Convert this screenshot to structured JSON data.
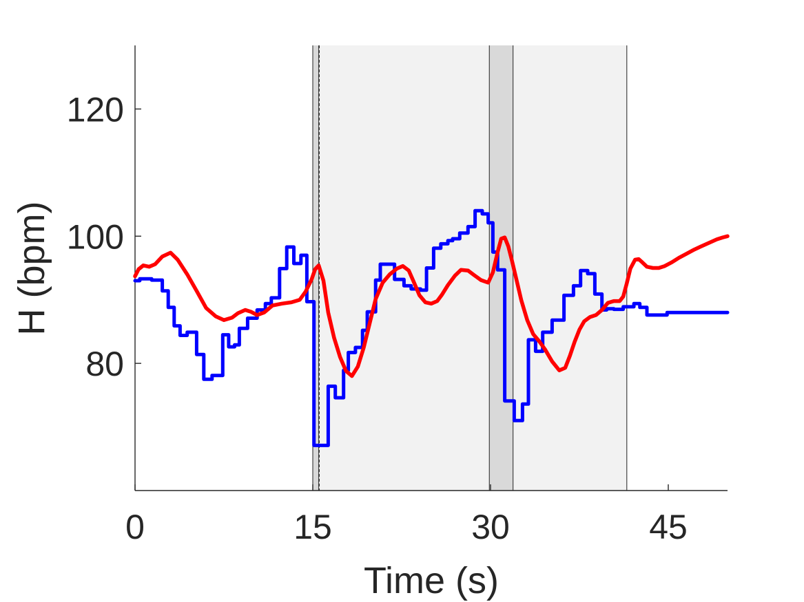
{
  "chart_data": {
    "type": "line",
    "xlabel": "Time (s)",
    "ylabel": "H (bpm)",
    "xlim": [
      0,
      50
    ],
    "ylim": [
      60,
      130
    ],
    "xticks": [
      0,
      15,
      30,
      45
    ],
    "yticks": [
      80,
      100,
      120
    ],
    "grid": false,
    "legend": "none",
    "colors": {
      "axis": "#262626",
      "shade_light": "#f2f2f2",
      "shade_dark": "#d9d9d9",
      "shade_line": "#333333"
    },
    "shaded_regions": [
      {
        "x0": 15.0,
        "x1": 15.5,
        "shade": "dark"
      },
      {
        "x0": 15.5,
        "x1": 29.9,
        "shade": "light"
      },
      {
        "x0": 29.9,
        "x1": 31.9,
        "shade": "dark"
      },
      {
        "x0": 31.9,
        "x1": 41.5,
        "shade": "light"
      }
    ],
    "dashed_lines": [
      15.55
    ],
    "series": [
      {
        "color": "#0000ff",
        "step": true,
        "x": [
          0,
          0.4,
          1.4,
          2.3,
          2.8,
          3.3,
          3.8,
          4.4,
          5.2,
          5.8,
          6.5,
          7.4,
          7.9,
          8.4,
          8.8,
          9.5,
          10.3,
          11.0,
          11.5,
          12.2,
          12.8,
          13.4,
          14.0,
          14.5,
          15.1,
          15.4,
          15.6,
          16.3,
          16.9,
          17.6,
          18.0,
          18.6,
          19.2,
          19.6,
          20.3,
          20.7,
          21.3,
          21.9,
          22.7,
          23.3,
          24.1,
          24.6,
          25.2,
          25.8,
          26.4,
          26.8,
          27.4,
          28.1,
          28.7,
          29.3,
          29.8,
          30.2,
          30.6,
          31.2,
          32.0,
          32.7,
          33.2,
          33.8,
          34.4,
          35.2,
          36.2,
          37.0,
          37.6,
          38.2,
          38.8,
          39.4,
          39.8,
          40.4,
          41.2,
          42.1,
          42.6,
          43.2,
          43.7,
          44.9,
          45.5,
          45.9,
          46.7,
          47.6,
          48.1,
          48.7,
          49.3,
          50.0
        ],
        "y": [
          93,
          93.3,
          93.1,
          91.4,
          88.8,
          85.9,
          84.4,
          84.9,
          81.4,
          77.5,
          78.1,
          84.5,
          82.6,
          82.9,
          85.5,
          87.1,
          88.4,
          89.4,
          90.3,
          94.9,
          98.3,
          95.7,
          97.0,
          89.7,
          67.1,
          67.1,
          67.1,
          76.4,
          74.6,
          78.9,
          81.7,
          82.5,
          85.2,
          88.1,
          93.1,
          95.6,
          95.6,
          93.2,
          92.2,
          91.7,
          91.5,
          95.0,
          98.1,
          98.8,
          99.3,
          99.6,
          100.5,
          101.5,
          104.0,
          103.5,
          102.1,
          97.5,
          94.7,
          74.1,
          71.0,
          73.6,
          83.7,
          81.9,
          84.9,
          86.8,
          90.7,
          92.2,
          94.6,
          94.1,
          90.9,
          88.4,
          88.6,
          88.5,
          88.9,
          89.4,
          88.8,
          87.6,
          87.6,
          88.0,
          88.0,
          88.0,
          88.0,
          88.0,
          88.0,
          88.0,
          88.0,
          88.0
        ]
      },
      {
        "color": "#ff0000",
        "step": false,
        "x": [
          0,
          0.3,
          0.7,
          1.2,
          1.7,
          2.3,
          3.0,
          3.6,
          4.4,
          5.2,
          6.0,
          6.8,
          7.5,
          8.2,
          8.7,
          9.3,
          9.8,
          10.3,
          10.9,
          11.6,
          12.4,
          13.2,
          13.9,
          14.4,
          14.9,
          15.2,
          15.5,
          15.9,
          16.3,
          16.8,
          17.3,
          17.8,
          18.3,
          18.8,
          19.3,
          19.8,
          20.3,
          20.9,
          21.5,
          22.1,
          22.6,
          23.1,
          23.5,
          24.0,
          24.5,
          25.0,
          25.5,
          25.9,
          26.4,
          27.0,
          27.5,
          28.1,
          28.6,
          29.2,
          29.8,
          30.2,
          30.6,
          30.9,
          31.2,
          31.5,
          31.8,
          32.2,
          32.6,
          33.1,
          33.6,
          34.1,
          34.6,
          35.2,
          35.8,
          36.3,
          36.7,
          37.1,
          37.5,
          37.9,
          38.4,
          38.9,
          39.4,
          39.9,
          40.4,
          40.9,
          41.2,
          41.5,
          41.8,
          42.2,
          42.5,
          42.8,
          43.2,
          43.7,
          44.2,
          44.7,
          45.3,
          45.9,
          46.5,
          47.2,
          47.9,
          48.5,
          49.1,
          49.6,
          50.0
        ],
        "y": [
          93.7,
          94.8,
          95.4,
          95.2,
          95.6,
          96.8,
          97.4,
          96.3,
          94.0,
          91.4,
          88.7,
          87.4,
          86.8,
          87.2,
          87.9,
          88.4,
          88.1,
          87.6,
          88.0,
          89.1,
          89.4,
          89.6,
          90.0,
          91.3,
          93.2,
          94.8,
          95.4,
          93.0,
          88.0,
          84.0,
          81.0,
          78.8,
          78.0,
          79.5,
          82.5,
          86.3,
          90.1,
          92.7,
          94.0,
          94.9,
          95.3,
          94.6,
          92.9,
          90.7,
          89.6,
          89.4,
          89.8,
          90.8,
          92.3,
          93.8,
          94.7,
          94.6,
          93.9,
          93.1,
          92.7,
          94.3,
          97.5,
          99.6,
          99.8,
          98.4,
          96.2,
          93.1,
          89.9,
          86.8,
          84.6,
          83.5,
          82.2,
          80.3,
          78.9,
          79.3,
          81.2,
          83.4,
          85.3,
          86.6,
          87.3,
          87.6,
          88.4,
          89.5,
          89.8,
          89.8,
          90.5,
          92.6,
          94.9,
          96.3,
          96.4,
          95.9,
          95.2,
          95.0,
          95.0,
          95.3,
          95.9,
          96.6,
          97.2,
          97.9,
          98.5,
          99.0,
          99.5,
          99.8,
          100.0
        ]
      }
    ]
  }
}
